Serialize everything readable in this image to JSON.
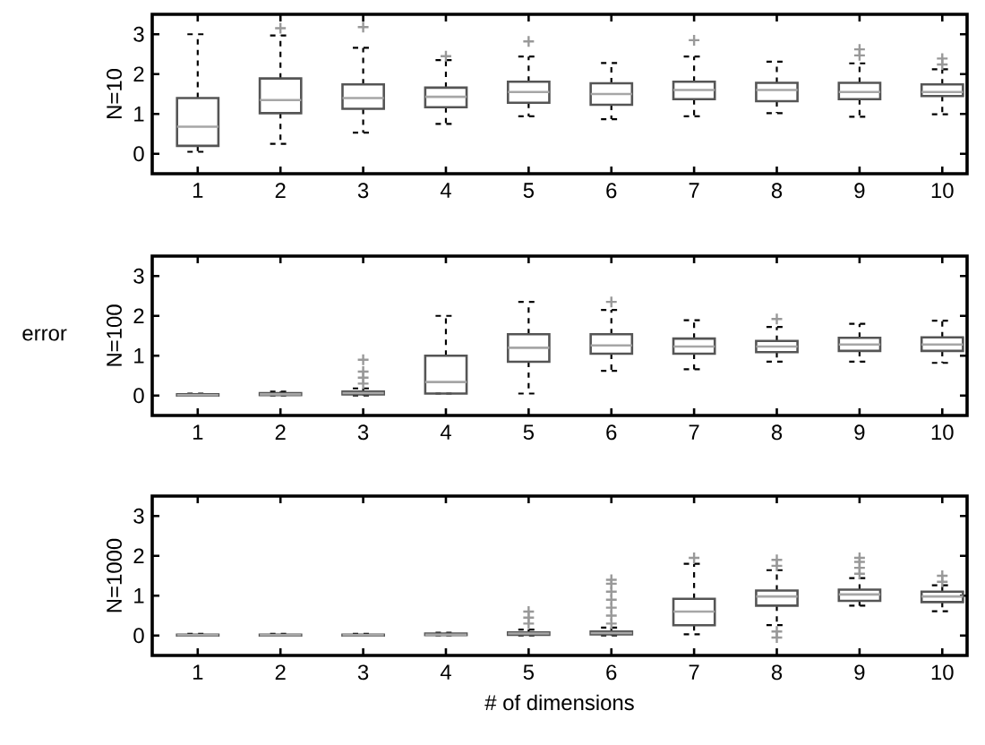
{
  "chart_data": [
    {
      "type": "box",
      "ylabel": "N=10",
      "categories": [
        "1",
        "2",
        "3",
        "4",
        "5",
        "6",
        "7",
        "8",
        "9",
        "10"
      ],
      "ylim": [
        -0.5,
        3.5
      ],
      "yticks": [
        0,
        1,
        2,
        3
      ],
      "grid": false,
      "marker": "cross",
      "series": [
        {
          "color": "#555555",
          "boxes": [
            {
              "low": 0.05,
              "q1": 0.2,
              "median": 0.68,
              "q3": 1.4,
              "high": 3.0
            },
            {
              "low": 0.25,
              "q1": 1.02,
              "median": 1.35,
              "q3": 1.89,
              "high": 2.97,
              "outliers": [
                3.15
              ]
            },
            {
              "low": 0.53,
              "q1": 1.13,
              "median": 1.4,
              "q3": 1.74,
              "high": 2.66,
              "outliers": [
                3.18
              ]
            },
            {
              "low": 0.75,
              "q1": 1.17,
              "median": 1.43,
              "q3": 1.66,
              "high": 2.35,
              "outliers": [
                2.45
              ]
            },
            {
              "low": 0.94,
              "q1": 1.28,
              "median": 1.55,
              "q3": 1.81,
              "high": 2.44,
              "outliers": [
                2.82
              ]
            },
            {
              "low": 0.87,
              "q1": 1.23,
              "median": 1.5,
              "q3": 1.77,
              "high": 2.28
            },
            {
              "low": 0.94,
              "q1": 1.37,
              "median": 1.6,
              "q3": 1.81,
              "high": 2.44,
              "outliers": [
                2.85
              ]
            },
            {
              "low": 1.02,
              "q1": 1.32,
              "median": 1.6,
              "q3": 1.78,
              "high": 2.31
            },
            {
              "low": 0.93,
              "q1": 1.37,
              "median": 1.55,
              "q3": 1.78,
              "high": 2.27,
              "outliers": [
                2.47,
                2.62
              ]
            },
            {
              "low": 0.99,
              "q1": 1.45,
              "median": 1.55,
              "q3": 1.74,
              "high": 2.12,
              "outliers": [
                2.24,
                2.39
              ]
            }
          ]
        }
      ]
    },
    {
      "type": "box",
      "ylabel": "N=100",
      "annotations": [
        "error"
      ],
      "categories": [
        "1",
        "2",
        "3",
        "4",
        "5",
        "6",
        "7",
        "8",
        "9",
        "10"
      ],
      "ylim": [
        -0.5,
        3.5
      ],
      "yticks": [
        0,
        1,
        2,
        3
      ],
      "grid": false,
      "marker": "cross",
      "series": [
        {
          "color": "#555555",
          "boxes": [
            {
              "low": 0,
              "q1": 0,
              "median": 0.01,
              "q3": 0.03,
              "high": 0.05
            },
            {
              "low": 0,
              "q1": 0.01,
              "median": 0.03,
              "q3": 0.06,
              "high": 0.1
            },
            {
              "low": 0,
              "q1": 0.03,
              "median": 0.06,
              "q3": 0.1,
              "high": 0.18,
              "outliers": [
                0.3,
                0.45,
                0.6,
                0.9
              ]
            },
            {
              "low": 0.05,
              "q1": 0.05,
              "median": 0.34,
              "q3": 1.0,
              "high": 2.0
            },
            {
              "low": 0.05,
              "q1": 0.85,
              "median": 1.2,
              "q3": 1.54,
              "high": 2.35
            },
            {
              "low": 0.62,
              "q1": 1.05,
              "median": 1.26,
              "q3": 1.54,
              "high": 2.15,
              "outliers": [
                2.35
              ]
            },
            {
              "low": 0.66,
              "q1": 1.05,
              "median": 1.23,
              "q3": 1.43,
              "high": 1.89
            },
            {
              "low": 0.85,
              "q1": 1.09,
              "median": 1.23,
              "q3": 1.37,
              "high": 1.72,
              "outliers": [
                1.92
              ]
            },
            {
              "low": 0.85,
              "q1": 1.12,
              "median": 1.28,
              "q3": 1.45,
              "high": 1.8
            },
            {
              "low": 0.82,
              "q1": 1.12,
              "median": 1.28,
              "q3": 1.46,
              "high": 1.88
            }
          ]
        }
      ]
    },
    {
      "type": "box",
      "ylabel": "N=1000",
      "xlabel": "# of dimensions",
      "categories": [
        "1",
        "2",
        "3",
        "4",
        "5",
        "6",
        "7",
        "8",
        "9",
        "10"
      ],
      "ylim": [
        -0.5,
        3.5
      ],
      "yticks": [
        0,
        1,
        2,
        3
      ],
      "grid": false,
      "marker": "cross",
      "series": [
        {
          "color": "#555555",
          "boxes": [
            {
              "low": 0,
              "q1": 0,
              "median": 0.01,
              "q3": 0.02,
              "high": 0.04
            },
            {
              "low": 0,
              "q1": 0,
              "median": 0.01,
              "q3": 0.02,
              "high": 0.04
            },
            {
              "low": 0,
              "q1": 0,
              "median": 0.01,
              "q3": 0.02,
              "high": 0.04
            },
            {
              "low": 0,
              "q1": 0.01,
              "median": 0.02,
              "q3": 0.05,
              "high": 0.07
            },
            {
              "low": 0,
              "q1": 0.02,
              "median": 0.05,
              "q3": 0.08,
              "high": 0.15,
              "outliers": [
                0.3,
                0.45,
                0.6
              ]
            },
            {
              "low": 0,
              "q1": 0.03,
              "median": 0.06,
              "q3": 0.1,
              "high": 0.2,
              "outliers": [
                0.3,
                0.5,
                0.7,
                0.9,
                1.1,
                1.3,
                1.4
              ]
            },
            {
              "low": 0.03,
              "q1": 0.26,
              "median": 0.6,
              "q3": 0.92,
              "high": 1.8,
              "outliers": [
                1.95
              ]
            },
            {
              "low": 0.26,
              "q1": 0.75,
              "median": 0.98,
              "q3": 1.13,
              "high": 1.64,
              "outliers": [
                -0.05,
                0.1,
                1.75,
                1.9
              ]
            },
            {
              "low": 0.75,
              "q1": 0.87,
              "median": 1.03,
              "q3": 1.15,
              "high": 1.44,
              "outliers": [
                1.55,
                1.7,
                1.85,
                1.95
              ]
            },
            {
              "low": 0.61,
              "q1": 0.84,
              "median": 0.98,
              "q3": 1.1,
              "high": 1.26,
              "outliers": [
                1.35,
                1.5
              ]
            }
          ]
        }
      ]
    }
  ]
}
